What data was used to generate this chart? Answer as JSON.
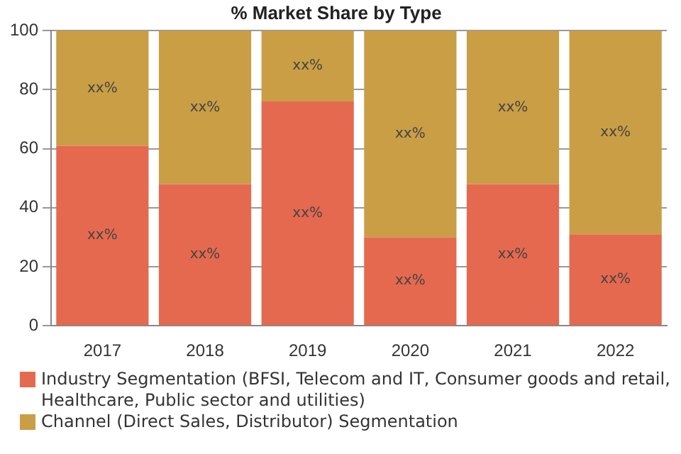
{
  "chart_data": {
    "type": "bar",
    "title": "% Market Share by Type",
    "stacked": true,
    "categories": [
      "2017",
      "2018",
      "2019",
      "2020",
      "2021",
      "2022"
    ],
    "series": [
      {
        "name": "Industry Segmentation (BFSI, Telecom and IT, Consumer goods and retail, Healthcare, Public sector and utilities)",
        "color": "#e5694f",
        "values": [
          61,
          48,
          76,
          30,
          48,
          31
        ],
        "value_labels": [
          "xx%",
          "xx%",
          "xx%",
          "xx%",
          "xx%",
          "xx%"
        ]
      },
      {
        "name": "Channel (Direct Sales, Distributor) Segmentation",
        "color": "#c99e45",
        "values": [
          39,
          52,
          24,
          70,
          52,
          69
        ],
        "value_labels": [
          "xx%",
          "xx%",
          "xx%",
          "xx%",
          "xx%",
          "xx%"
        ]
      }
    ],
    "ylim": [
      0,
      100
    ],
    "yticks": [
      0,
      20,
      40,
      60,
      80,
      100
    ],
    "grid": "y",
    "legend": "bottom"
  }
}
